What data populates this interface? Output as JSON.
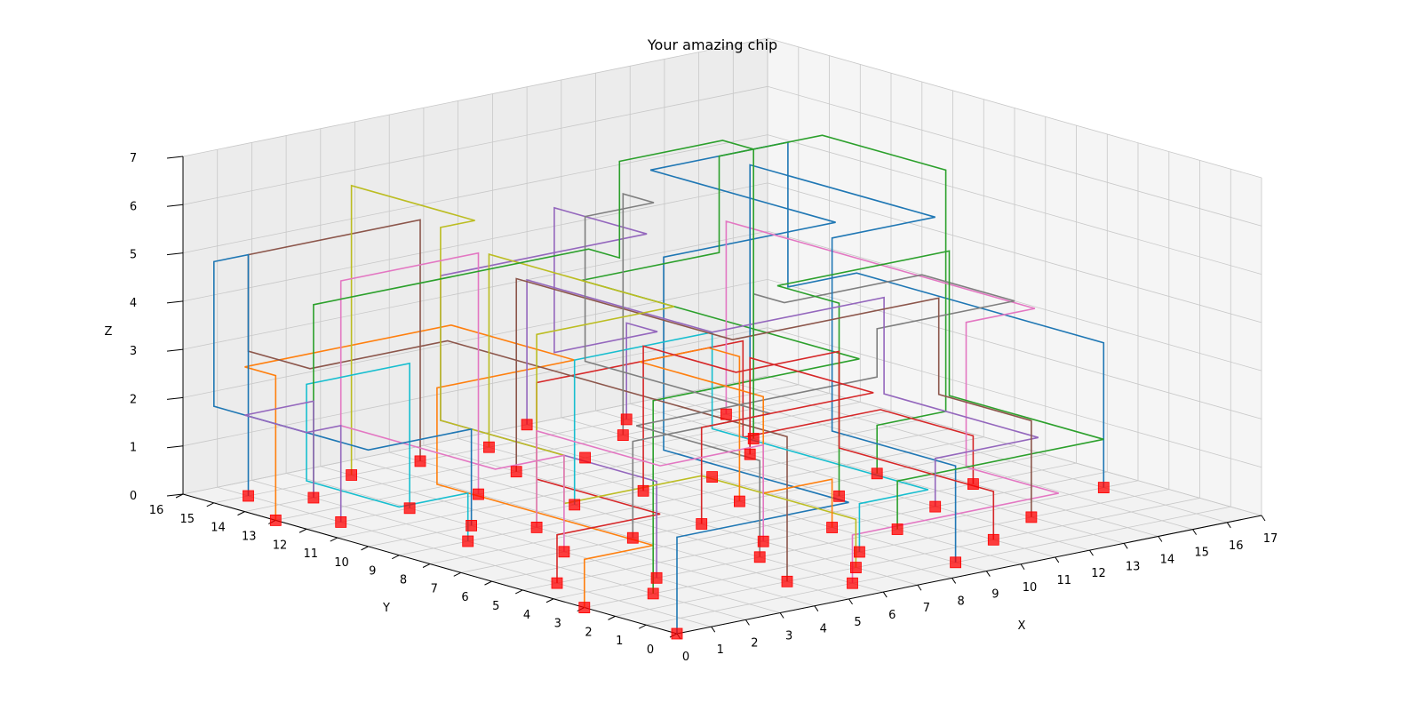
{
  "chart_data": {
    "type": "line",
    "projection": "3d",
    "title": "Your amazing chip",
    "xlabel": "X",
    "ylabel": "Y",
    "zlabel": "Z",
    "xlim": [
      0,
      17
    ],
    "ylim": [
      0,
      16
    ],
    "zlim": [
      0,
      7
    ],
    "x_ticks": [
      "0",
      "1",
      "2",
      "3",
      "4",
      "5",
      "6",
      "7",
      "8",
      "9",
      "10",
      "11",
      "12",
      "13",
      "14",
      "15",
      "16",
      "17"
    ],
    "y_ticks": [
      "0",
      "1",
      "2",
      "3",
      "4",
      "5",
      "6",
      "7",
      "8",
      "9",
      "10",
      "11",
      "12",
      "13",
      "14",
      "15",
      "16"
    ],
    "z_ticks": [
      "0",
      "1",
      "2",
      "3",
      "4",
      "5",
      "6",
      "7"
    ],
    "grid": true,
    "gate_color": "#ff0000",
    "gates": [
      [
        0,
        0,
        0
      ],
      [
        0,
        3,
        0
      ],
      [
        2,
        3,
        0
      ],
      [
        1,
        5,
        0
      ],
      [
        3,
        4,
        0
      ],
      [
        5,
        2,
        0
      ],
      [
        6,
        1,
        0
      ],
      [
        6,
        4,
        0
      ],
      [
        7,
        2,
        0
      ],
      [
        8,
        3,
        0
      ],
      [
        9,
        1,
        0
      ],
      [
        9,
        5,
        0
      ],
      [
        10,
        4,
        0
      ],
      [
        11,
        2,
        0
      ],
      [
        12,
        5,
        0
      ],
      [
        13,
        3,
        0
      ],
      [
        14,
        6,
        0
      ],
      [
        16,
        4,
        0
      ],
      [
        3,
        7,
        0
      ],
      [
        5,
        7,
        0
      ],
      [
        7,
        7,
        0
      ],
      [
        9,
        8,
        0
      ],
      [
        11,
        7,
        0
      ],
      [
        13,
        8,
        0
      ],
      [
        2,
        9,
        0
      ],
      [
        4,
        9,
        0
      ],
      [
        6,
        10,
        0
      ],
      [
        8,
        10,
        0
      ],
      [
        10,
        10,
        0
      ],
      [
        12,
        11,
        0
      ],
      [
        1,
        12,
        0
      ],
      [
        3,
        12,
        0
      ],
      [
        5,
        12,
        0
      ],
      [
        7,
        13,
        0
      ],
      [
        9,
        13,
        0
      ],
      [
        11,
        14,
        0
      ],
      [
        2,
        14,
        0
      ],
      [
        4,
        15,
        0
      ],
      [
        6,
        15,
        0
      ],
      [
        8,
        15,
        0
      ],
      [
        10,
        16,
        0
      ],
      [
        1,
        15,
        0
      ],
      [
        0,
        13,
        0
      ],
      [
        13,
        12,
        0
      ],
      [
        12,
        15,
        0
      ],
      [
        14,
        14,
        0
      ],
      [
        3,
        10,
        0
      ],
      [
        7,
        5,
        0
      ]
    ],
    "series": [
      {
        "color": "#1f77b4",
        "points": [
          [
            0,
            0,
            0
          ],
          [
            0,
            0,
            2
          ],
          [
            5,
            0,
            2
          ],
          [
            5,
            6,
            2
          ],
          [
            5,
            6,
            6
          ],
          [
            10,
            6,
            6
          ],
          [
            10,
            12,
            6
          ],
          [
            14,
            12,
            6
          ],
          [
            14,
            12,
            3
          ],
          [
            16,
            12,
            3
          ],
          [
            16,
            4,
            3
          ],
          [
            16,
            4,
            0
          ]
        ]
      },
      {
        "color": "#ff7f0e",
        "points": [
          [
            0,
            3,
            0
          ],
          [
            0,
            3,
            1
          ],
          [
            2,
            3,
            1
          ],
          [
            2,
            10,
            1
          ],
          [
            2,
            10,
            3
          ],
          [
            6,
            10,
            3
          ],
          [
            6,
            14,
            3
          ],
          [
            0,
            14,
            3
          ],
          [
            0,
            13,
            3
          ],
          [
            0,
            13,
            0
          ]
        ]
      },
      {
        "color": "#2ca02c",
        "points": [
          [
            2,
            3,
            0
          ],
          [
            2,
            3,
            4
          ],
          [
            8,
            3,
            4
          ],
          [
            8,
            12,
            4
          ],
          [
            12,
            12,
            4
          ],
          [
            12,
            12,
            6
          ],
          [
            15,
            12,
            6
          ],
          [
            15,
            8,
            6
          ],
          [
            15,
            8,
            1
          ],
          [
            13,
            8,
            1
          ],
          [
            13,
            8,
            0
          ]
        ]
      },
      {
        "color": "#d62728",
        "points": [
          [
            1,
            5,
            0
          ],
          [
            1,
            5,
            1
          ],
          [
            4,
            5,
            1
          ],
          [
            4,
            9,
            1
          ],
          [
            4,
            9,
            3
          ],
          [
            10,
            9,
            3
          ],
          [
            10,
            9,
            1
          ],
          [
            14,
            9,
            1
          ],
          [
            14,
            6,
            1
          ],
          [
            14,
            6,
            0
          ]
        ]
      },
      {
        "color": "#9467bd",
        "points": [
          [
            3,
            4,
            0
          ],
          [
            3,
            4,
            2
          ],
          [
            3,
            11,
            2
          ],
          [
            3,
            11,
            5
          ],
          [
            9,
            11,
            5
          ],
          [
            9,
            14,
            5
          ],
          [
            9,
            14,
            2
          ],
          [
            12,
            14,
            2
          ],
          [
            12,
            15,
            2
          ],
          [
            12,
            15,
            0
          ]
        ]
      },
      {
        "color": "#8c564b",
        "points": [
          [
            5,
            2,
            0
          ],
          [
            5,
            2,
            3
          ],
          [
            5,
            13,
            3
          ],
          [
            1,
            13,
            3
          ],
          [
            1,
            15,
            3
          ],
          [
            1,
            15,
            5
          ],
          [
            6,
            15,
            5
          ],
          [
            6,
            15,
            0
          ]
        ]
      },
      {
        "color": "#e377c2",
        "points": [
          [
            6,
            1,
            0
          ],
          [
            6,
            1,
            1
          ],
          [
            12,
            1,
            1
          ],
          [
            12,
            4,
            1
          ],
          [
            12,
            4,
            4
          ],
          [
            14,
            4,
            4
          ],
          [
            14,
            14,
            4
          ],
          [
            14,
            14,
            0
          ]
        ]
      },
      {
        "color": "#7f7f7f",
        "points": [
          [
            6,
            4,
            0
          ],
          [
            6,
            4,
            2
          ],
          [
            6,
            8,
            2
          ],
          [
            13,
            8,
            2
          ],
          [
            13,
            8,
            3
          ],
          [
            17,
            8,
            3
          ],
          [
            17,
            11,
            3
          ],
          [
            13,
            11,
            3
          ],
          [
            13,
            12,
            3
          ],
          [
            13,
            12,
            0
          ]
        ]
      },
      {
        "color": "#bcbd22",
        "points": [
          [
            7,
            2,
            0
          ],
          [
            7,
            2,
            1
          ],
          [
            7,
            7,
            1
          ],
          [
            3,
            7,
            1
          ],
          [
            3,
            7,
            2
          ],
          [
            3,
            11,
            2
          ],
          [
            3,
            11,
            6
          ],
          [
            4,
            11,
            6
          ],
          [
            4,
            15,
            6
          ],
          [
            4,
            15,
            0
          ]
        ]
      },
      {
        "color": "#17becf",
        "points": [
          [
            8,
            3,
            0
          ],
          [
            8,
            3,
            1
          ],
          [
            10,
            3,
            1
          ],
          [
            10,
            10,
            1
          ],
          [
            10,
            10,
            3
          ],
          [
            6,
            10,
            3
          ],
          [
            6,
            10,
            0
          ]
        ]
      },
      {
        "color": "#1f77b4",
        "points": [
          [
            9,
            1,
            0
          ],
          [
            9,
            1,
            2
          ],
          [
            9,
            5,
            2
          ],
          [
            9,
            5,
            6
          ],
          [
            12,
            5,
            6
          ],
          [
            12,
            11,
            6
          ],
          [
            12,
            11,
            4
          ],
          [
            12,
            11,
            0
          ]
        ]
      },
      {
        "color": "#ff7f0e",
        "points": [
          [
            9,
            5,
            0
          ],
          [
            9,
            5,
            1
          ],
          [
            7,
            5,
            1
          ],
          [
            7,
            5,
            3
          ],
          [
            7,
            9,
            3
          ],
          [
            9,
            9,
            3
          ],
          [
            9,
            8,
            3
          ],
          [
            9,
            8,
            0
          ]
        ]
      },
      {
        "color": "#2ca02c",
        "points": [
          [
            10,
            4,
            0
          ],
          [
            10,
            4,
            1
          ],
          [
            16,
            4,
            1
          ],
          [
            16,
            9,
            1
          ],
          [
            16,
            9,
            4
          ],
          [
            11,
            9,
            4
          ],
          [
            11,
            7,
            4
          ],
          [
            11,
            7,
            0
          ]
        ]
      },
      {
        "color": "#d62728",
        "points": [
          [
            11,
            2,
            0
          ],
          [
            11,
            2,
            1
          ],
          [
            11,
            7,
            1
          ],
          [
            11,
            7,
            3
          ],
          [
            8,
            7,
            3
          ],
          [
            8,
            10,
            3
          ],
          [
            8,
            10,
            0
          ]
        ]
      },
      {
        "color": "#9467bd",
        "points": [
          [
            12,
            5,
            0
          ],
          [
            12,
            5,
            1
          ],
          [
            15,
            5,
            1
          ],
          [
            15,
            10,
            1
          ],
          [
            15,
            10,
            3
          ],
          [
            10,
            10,
            3
          ],
          [
            10,
            16,
            3
          ],
          [
            10,
            16,
            0
          ]
        ]
      },
      {
        "color": "#8c564b",
        "points": [
          [
            13,
            3,
            0
          ],
          [
            13,
            3,
            2
          ],
          [
            13,
            6,
            2
          ],
          [
            13,
            6,
            4
          ],
          [
            7,
            6,
            4
          ],
          [
            7,
            13,
            4
          ],
          [
            7,
            13,
            0
          ]
        ]
      },
      {
        "color": "#e377c2",
        "points": [
          [
            3,
            7,
            0
          ],
          [
            3,
            7,
            2
          ],
          [
            1,
            7,
            2
          ],
          [
            1,
            12,
            2
          ],
          [
            1,
            12,
            5
          ],
          [
            5,
            12,
            5
          ],
          [
            5,
            12,
            0
          ]
        ]
      },
      {
        "color": "#7f7f7f",
        "points": [
          [
            5,
            7,
            0
          ],
          [
            5,
            7,
            2
          ],
          [
            9,
            7,
            2
          ],
          [
            9,
            13,
            2
          ],
          [
            9,
            13,
            5
          ],
          [
            11,
            13,
            5
          ],
          [
            11,
            14,
            5
          ],
          [
            11,
            14,
            0
          ]
        ]
      },
      {
        "color": "#bcbd22",
        "points": [
          [
            4,
            9,
            0
          ],
          [
            4,
            9,
            4
          ],
          [
            8,
            9,
            4
          ],
          [
            8,
            15,
            4
          ],
          [
            8,
            15,
            0
          ]
        ]
      },
      {
        "color": "#17becf",
        "points": [
          [
            2,
            9,
            0
          ],
          [
            2,
            9,
            1
          ],
          [
            0,
            9,
            1
          ],
          [
            0,
            12,
            1
          ],
          [
            0,
            12,
            3
          ],
          [
            3,
            12,
            3
          ],
          [
            3,
            12,
            0
          ]
        ]
      },
      {
        "color": "#1f77b4",
        "points": [
          [
            3,
            10,
            0
          ],
          [
            3,
            10,
            2
          ],
          [
            0,
            10,
            2
          ],
          [
            0,
            15,
            2
          ],
          [
            0,
            15,
            5
          ],
          [
            1,
            15,
            5
          ],
          [
            1,
            15,
            0
          ]
        ]
      },
      {
        "color": "#2ca02c",
        "points": [
          [
            2,
            14,
            0
          ],
          [
            2,
            14,
            4
          ],
          [
            10,
            14,
            4
          ],
          [
            10,
            13,
            4
          ],
          [
            10,
            13,
            6
          ],
          [
            13,
            13,
            6
          ],
          [
            13,
            12,
            6
          ],
          [
            13,
            12,
            0
          ]
        ]
      },
      {
        "color": "#d62728",
        "points": [
          [
            7,
            7,
            0
          ],
          [
            7,
            7,
            2
          ],
          [
            12,
            7,
            2
          ],
          [
            12,
            11,
            2
          ],
          [
            12,
            11,
            0
          ]
        ]
      },
      {
        "color": "#9467bd",
        "points": [
          [
            1,
            12,
            0
          ],
          [
            1,
            12,
            2
          ],
          [
            0,
            12,
            2
          ],
          [
            0,
            14,
            2
          ],
          [
            2,
            14,
            2
          ],
          [
            2,
            14,
            0
          ]
        ]
      },
      {
        "color": "#e377c2",
        "points": [
          [
            7,
            5,
            0
          ],
          [
            7,
            5,
            2
          ],
          [
            4,
            5,
            2
          ],
          [
            4,
            9,
            2
          ],
          [
            4,
            9,
            0
          ]
        ]
      }
    ]
  }
}
